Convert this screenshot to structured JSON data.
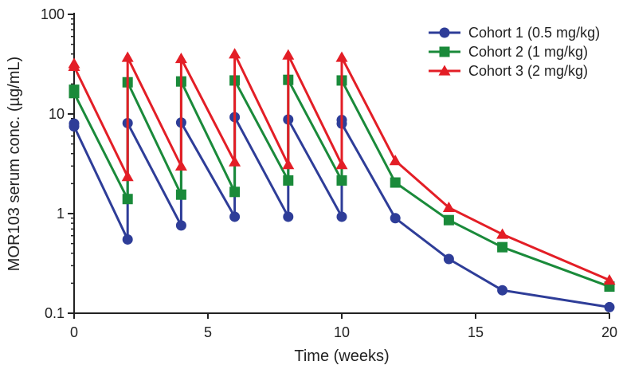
{
  "chart_data": {
    "type": "line",
    "xlabel": "Time (weeks)",
    "ylabel": "MOR103 serum conc. (µg/mL)",
    "x_axis": {
      "min": 0,
      "max": 20,
      "ticks": [
        0,
        5,
        10,
        15,
        20
      ],
      "tick_labels": [
        "0",
        "5",
        "10",
        "15",
        "20"
      ]
    },
    "y_axis": {
      "scale": "log",
      "min": 0.1,
      "max": 100,
      "ticks": [
        0.1,
        1,
        10,
        100
      ],
      "tick_labels": [
        "0.1",
        "1",
        "10",
        "100"
      ]
    },
    "grid": false,
    "legend_position": "top-right",
    "series": [
      {
        "name": "Cohort 1 (0.5 mg/kg)",
        "color": "#2e3d98",
        "marker": "circle",
        "points": [
          [
            0,
            8.0
          ],
          [
            0,
            7.5
          ],
          [
            2,
            0.55
          ],
          [
            2,
            8.1
          ],
          [
            4,
            0.76
          ],
          [
            4,
            8.2
          ],
          [
            6,
            0.93
          ],
          [
            6,
            9.3
          ],
          [
            8,
            0.93
          ],
          [
            8,
            8.8
          ],
          [
            10,
            0.93
          ],
          [
            10,
            8.7
          ],
          [
            10,
            8.0
          ],
          [
            12,
            0.9
          ],
          [
            14,
            0.35
          ],
          [
            16,
            0.17
          ],
          [
            20,
            0.115
          ]
        ]
      },
      {
        "name": "Cohort 2 (1 mg/kg)",
        "color": "#1a8a3a",
        "marker": "square",
        "points": [
          [
            0,
            17.5
          ],
          [
            0,
            16.2
          ],
          [
            2,
            1.4
          ],
          [
            2,
            20.8
          ],
          [
            4,
            1.55
          ],
          [
            4,
            21.2
          ],
          [
            6,
            1.65
          ],
          [
            6,
            21.7
          ],
          [
            8,
            2.15
          ],
          [
            8,
            22.0
          ],
          [
            10,
            2.15
          ],
          [
            10,
            21.7
          ],
          [
            12,
            2.05
          ],
          [
            14,
            0.86
          ],
          [
            16,
            0.46
          ],
          [
            20,
            0.185
          ]
        ]
      },
      {
        "name": "Cohort 3 (2 mg/kg)",
        "color": "#e31e26",
        "marker": "triangle",
        "points": [
          [
            0,
            32.0
          ],
          [
            0,
            30.0
          ],
          [
            2,
            2.35
          ],
          [
            2,
            37.0
          ],
          [
            4,
            3.0
          ],
          [
            4,
            36.0
          ],
          [
            6,
            3.3
          ],
          [
            6,
            40.0
          ],
          [
            8,
            3.1
          ],
          [
            8,
            39.0
          ],
          [
            10,
            3.1
          ],
          [
            10,
            37.0
          ],
          [
            12,
            3.4
          ],
          [
            14,
            1.15
          ],
          [
            16,
            0.62
          ],
          [
            20,
            0.215
          ]
        ]
      }
    ]
  }
}
